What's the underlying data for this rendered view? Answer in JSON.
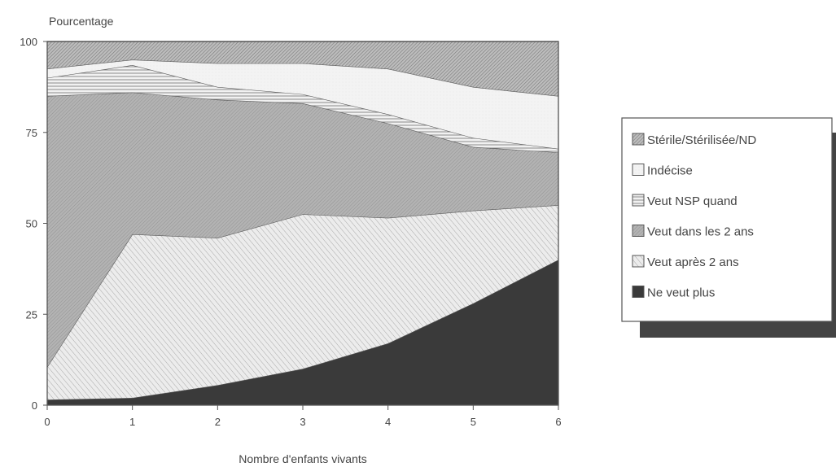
{
  "chart_data": {
    "type": "area",
    "stacked": true,
    "ylabel": "Pourcentage",
    "xlabel": "Nombre d'enfants vivants",
    "x": [
      0,
      1,
      2,
      3,
      4,
      5,
      6
    ],
    "xlim": [
      0,
      6
    ],
    "ylim": [
      0,
      100
    ],
    "yticks": [
      0,
      25,
      50,
      75,
      100
    ],
    "legend_position": "right",
    "series": [
      {
        "name": "Ne veut plus",
        "values": [
          1.5,
          2,
          5.5,
          10,
          17,
          28,
          40
        ]
      },
      {
        "name": "Veut après 2 ans",
        "values": [
          9,
          45,
          40.5,
          42.5,
          34.5,
          25.5,
          15
        ]
      },
      {
        "name": "Veut dans les 2 ans",
        "values": [
          74.5,
          39,
          38,
          30.5,
          26,
          17.5,
          14.5
        ]
      },
      {
        "name": "Veut NSP quand",
        "values": [
          5,
          7.5,
          3.5,
          2.5,
          2.5,
          2.5,
          1
        ]
      },
      {
        "name": "Indécise",
        "values": [
          2.5,
          1.5,
          6.5,
          8.5,
          12.5,
          14,
          14.5
        ]
      },
      {
        "name": "Stérile/Stérilisée/ND",
        "values": [
          7.5,
          5,
          6,
          6,
          7.5,
          12.5,
          15
        ]
      }
    ],
    "legend_order": [
      "Stérile/Stérilisée/ND",
      "Indécise",
      "Veut NSP quand",
      "Veut dans les 2 ans",
      "Veut après 2 ans",
      "Ne veut plus"
    ]
  }
}
